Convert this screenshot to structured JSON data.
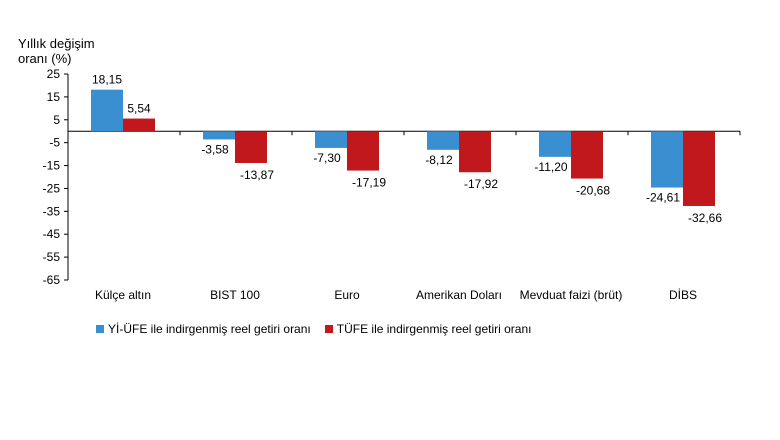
{
  "chart_data": {
    "type": "bar",
    "ylabel_line1": "Yıllık değişim",
    "ylabel_line2": "oranı (%)",
    "ylim": [
      -65,
      25
    ],
    "yticks": [
      25,
      15,
      5,
      -5,
      -15,
      -25,
      -35,
      -45,
      -55,
      -65
    ],
    "categories": [
      "Külçe altın",
      "BIST 100",
      "Euro",
      "Amerikan Doları",
      "Mevduat faizi (brüt)",
      "DİBS"
    ],
    "series": [
      {
        "name": "Yİ-ÜFE ile indirgenmiş reel getiri oranı",
        "color": "#3a8fd1",
        "values": [
          18.15,
          -3.58,
          -7.3,
          -8.12,
          -11.2,
          -24.61
        ],
        "labels": [
          "18,15",
          "-3,58",
          "-7,30",
          "-8,12",
          "-11,20",
          "-24,61"
        ]
      },
      {
        "name": "TÜFE ile indirgenmiş reel getiri oranı",
        "color": "#c0181c",
        "values": [
          5.54,
          -13.87,
          -17.19,
          -17.92,
          -20.68,
          -32.66
        ],
        "labels": [
          "5,54",
          "-13,87",
          "-17,19",
          "-17,92",
          "-20,68",
          "-32,66"
        ]
      }
    ],
    "legend_position": "bottom",
    "grid": false
  }
}
